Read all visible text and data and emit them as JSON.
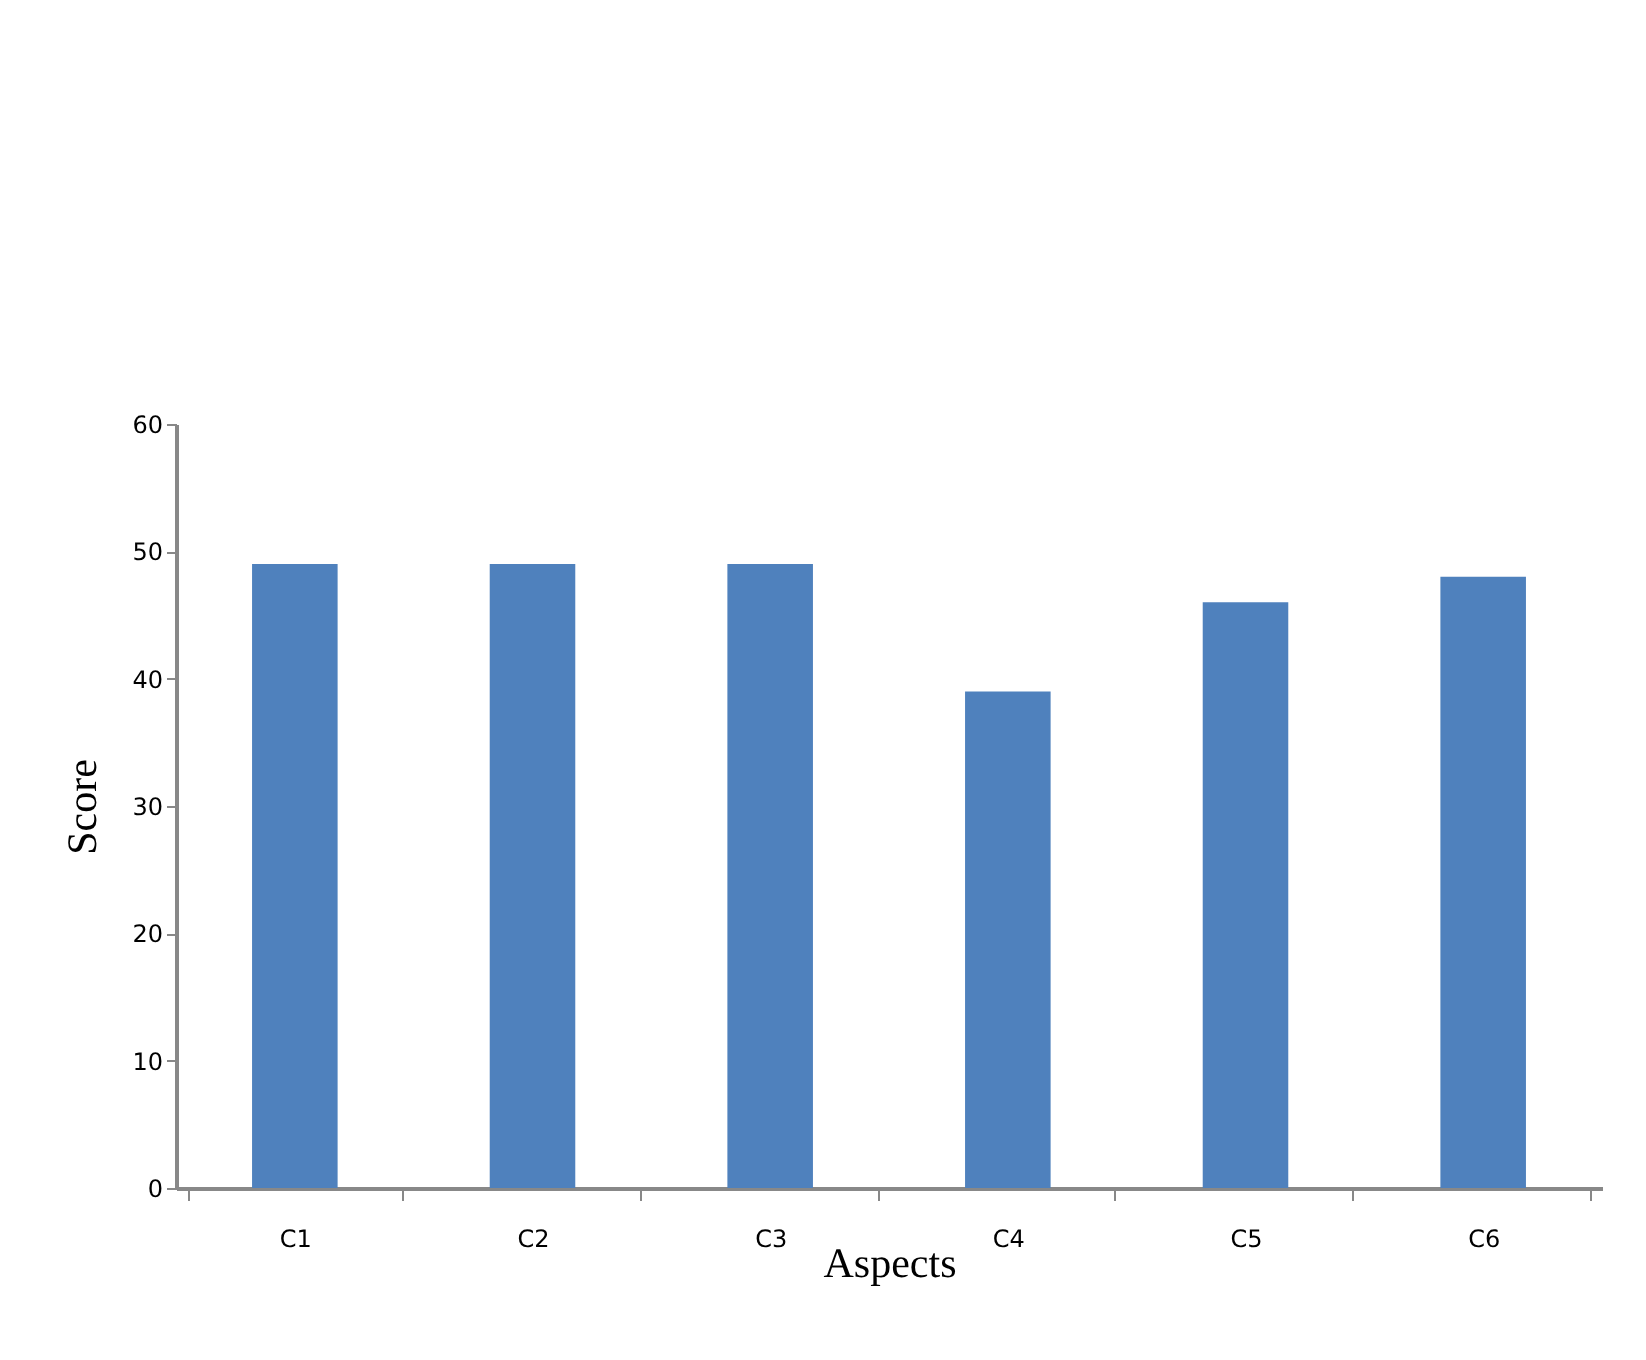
{
  "chart_data": {
    "type": "bar",
    "xlabel": "Aspects",
    "ylabel": "Score",
    "categories": [
      "C1",
      "C2",
      "C3",
      "C4",
      "C5",
      "C6"
    ],
    "values": [
      49,
      49,
      49,
      39,
      46,
      48
    ],
    "color": "#4f81bd",
    "ylim": [
      0,
      60
    ],
    "yticks": [
      0,
      10,
      20,
      30,
      40,
      50,
      60
    ],
    "grid": false
  }
}
